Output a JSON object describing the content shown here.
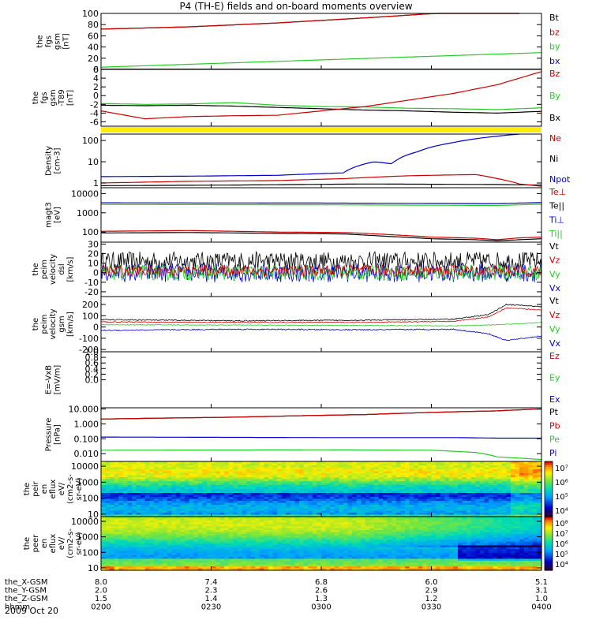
{
  "title": "P4 (TH-E) fields and on-board moments overview",
  "footer": {
    "rows": [
      {
        "label": "the_X-GSM",
        "values": [
          "8.0",
          "7.4",
          "6.8",
          "6.0",
          "5.1"
        ]
      },
      {
        "label": "the_Y-GSM",
        "values": [
          "2.0",
          "2.3",
          "2.6",
          "2.9",
          "3.1"
        ]
      },
      {
        "label": "the_Z-GSM",
        "values": [
          "1.5",
          "1.4",
          "1.3",
          "1.2",
          "1.0"
        ]
      },
      {
        "label": "hhmm",
        "values": [
          "0200",
          "0230",
          "0300",
          "0330",
          "0400"
        ]
      }
    ],
    "date": "2009 Oct 20"
  },
  "colors": {
    "black": "#000000",
    "red": "#cc0000",
    "green": "#22cc22",
    "blue": "#0000cc",
    "yellow": "#ffee00"
  },
  "chart_data": [
    {
      "type": "line",
      "ylabel": [
        "the",
        "fgs",
        "gsm",
        "[nT]"
      ],
      "ylim": [
        0,
        100
      ],
      "ticks": [
        {
          "v": 100,
          "l": "100"
        },
        {
          "v": 80,
          "l": "80"
        },
        {
          "v": 60,
          "l": "60"
        },
        {
          "v": 40,
          "l": "40"
        },
        {
          "v": 20,
          "l": "20"
        },
        {
          "v": 0,
          "l": "0"
        }
      ],
      "legend": [
        {
          "name": "Bt",
          "color": "#000000"
        },
        {
          "name": "bz",
          "color": "#cc0000"
        },
        {
          "name": "by",
          "color": "#22cc22"
        },
        {
          "name": "bx",
          "color": "#0000cc"
        }
      ],
      "series": [
        {
          "name": "bx",
          "color": "#0000cc",
          "x": [
            0,
            1
          ],
          "y": [
            0.5,
            0.5
          ]
        },
        {
          "name": "by",
          "color": "#22cc22",
          "x": [
            0,
            1
          ],
          "y": [
            4,
            30
          ]
        },
        {
          "name": "Bt",
          "color": "#000000",
          "x": [
            0,
            0.2,
            0.4,
            0.6,
            0.8,
            0.95
          ],
          "y": [
            72,
            76,
            83,
            92,
            102,
            110
          ]
        },
        {
          "name": "bz",
          "color": "#cc0000",
          "x": [
            0,
            0.2,
            0.4,
            0.6,
            0.8,
            0.95
          ],
          "y": [
            72,
            76,
            83,
            92,
            102,
            110
          ]
        }
      ]
    },
    {
      "type": "line",
      "ylabel": [
        "the",
        "fgs",
        "gsm",
        "-T89",
        "[nT]"
      ],
      "ylim": [
        -7,
        6
      ],
      "ticks": [
        {
          "v": 6,
          "l": "6"
        },
        {
          "v": 4,
          "l": "4"
        },
        {
          "v": 2,
          "l": "2"
        },
        {
          "v": 0,
          "l": "0"
        },
        {
          "v": -2,
          "l": "-2"
        },
        {
          "v": -4,
          "l": "-4"
        },
        {
          "v": -6,
          "l": "-6"
        }
      ],
      "legend": [
        {
          "name": "Bz",
          "color": "#cc0000"
        },
        {
          "name": "By",
          "color": "#22cc22"
        },
        {
          "name": "Bx",
          "color": "#000000"
        }
      ],
      "bar_color": "#ffee00",
      "series": [
        {
          "name": "By",
          "color": "#22cc22",
          "x": [
            0,
            0.1,
            0.2,
            0.3,
            0.4,
            0.5,
            0.6,
            0.7,
            0.8,
            0.9,
            1
          ],
          "y": [
            -1.8,
            -2.0,
            -1.9,
            -1.6,
            -2.2,
            -2.5,
            -2.6,
            -2.9,
            -3.0,
            -3.2,
            -2.8
          ]
        },
        {
          "name": "Bx",
          "color": "#000000",
          "x": [
            0,
            0.1,
            0.2,
            0.3,
            0.4,
            0.5,
            0.6,
            0.7,
            0.8,
            0.9,
            1
          ],
          "y": [
            -2.2,
            -2.3,
            -2.2,
            -2.4,
            -2.7,
            -3.0,
            -3.3,
            -3.5,
            -3.8,
            -4.0,
            -3.6
          ]
        },
        {
          "name": "Bz",
          "color": "#cc0000",
          "x": [
            0,
            0.1,
            0.2,
            0.3,
            0.4,
            0.5,
            0.6,
            0.7,
            0.8,
            0.9,
            1
          ],
          "y": [
            -3.5,
            -5.3,
            -4.8,
            -4.6,
            -4.5,
            -3.5,
            -2.5,
            -1.0,
            0.5,
            2.5,
            5.5
          ]
        }
      ]
    },
    {
      "type": "line",
      "ylabel": [
        "Density",
        "[cm-3]"
      ],
      "ylog": true,
      "ylim": [
        0.6,
        200
      ],
      "ticks": [
        {
          "v": 100,
          "l": "100"
        },
        {
          "v": 10,
          "l": "10"
        },
        {
          "v": 1,
          "l": "1"
        }
      ],
      "legend": [
        {
          "name": "Ne",
          "color": "#cc0000"
        },
        {
          "name": "Ni",
          "color": "#000000"
        },
        {
          "name": "Npot",
          "color": "#0000cc"
        }
      ],
      "series": [
        {
          "name": "Ni",
          "color": "#000000",
          "x": [
            0,
            0.3,
            0.6,
            0.9,
            1
          ],
          "y": [
            0.75,
            0.8,
            0.9,
            0.85,
            0.8
          ]
        },
        {
          "name": "Ne",
          "color": "#cc0000",
          "x": [
            0,
            0.2,
            0.4,
            0.55,
            0.7,
            0.8,
            0.85,
            0.9,
            0.95,
            1
          ],
          "y": [
            1,
            1.2,
            1.3,
            1.6,
            2.2,
            2.4,
            2.5,
            1.6,
            0.9,
            0.7
          ]
        },
        {
          "name": "Npot",
          "color": "#0000cc",
          "x": [
            0,
            0.2,
            0.4,
            0.55,
            0.62,
            0.66,
            0.72,
            0.8,
            0.95
          ],
          "y": [
            2,
            2.1,
            2.3,
            3,
            10,
            8,
            30,
            80,
            200
          ]
        }
      ]
    },
    {
      "type": "line",
      "ylabel": [
        "magt3",
        "[eV]"
      ],
      "ylog": true,
      "ylim": [
        30,
        20000
      ],
      "ticks": [
        {
          "v": 10000,
          "l": "10000"
        },
        {
          "v": 1000,
          "l": "1000"
        },
        {
          "v": 100,
          "l": "100"
        }
      ],
      "legend": [
        {
          "name": "Te⊥",
          "color": "#cc0000"
        },
        {
          "name": "Te||",
          "color": "#000000"
        },
        {
          "name": "Ti⊥",
          "color": "#0000cc"
        },
        {
          "name": "Ti||",
          "color": "#22cc22"
        }
      ],
      "series": [
        {
          "name": "Ti⊥",
          "color": "#0000cc",
          "x": [
            0,
            0.5,
            0.9,
            1
          ],
          "y": [
            3300,
            3200,
            3000,
            3400
          ]
        },
        {
          "name": "Ti||",
          "color": "#22cc22",
          "x": [
            0,
            0.5,
            0.9,
            1
          ],
          "y": [
            2700,
            2600,
            2400,
            2800
          ]
        },
        {
          "name": "Te||",
          "color": "#000000",
          "x": [
            0,
            0.2,
            0.4,
            0.55,
            0.65,
            0.75,
            0.85,
            0.9,
            0.95,
            1
          ],
          "y": [
            90,
            95,
            85,
            80,
            60,
            45,
            40,
            35,
            40,
            45
          ]
        },
        {
          "name": "Te⊥",
          "color": "#cc0000",
          "x": [
            0,
            0.2,
            0.4,
            0.55,
            0.65,
            0.75,
            0.85,
            0.9,
            0.95,
            1
          ],
          "y": [
            110,
            120,
            100,
            95,
            75,
            55,
            48,
            40,
            50,
            55
          ]
        }
      ]
    },
    {
      "type": "line",
      "ylabel": [
        "the",
        "peim",
        "velocity",
        "dsl",
        "[km/s]"
      ],
      "ylim": [
        -25,
        32
      ],
      "ticks": [
        {
          "v": 30,
          "l": "30"
        },
        {
          "v": 20,
          "l": "20"
        },
        {
          "v": 10,
          "l": "10"
        },
        {
          "v": 0,
          "l": "0"
        },
        {
          "v": -10,
          "l": "-10"
        },
        {
          "v": -20,
          "l": "-20"
        }
      ],
      "legend": [
        {
          "name": "Vt",
          "color": "#000000"
        },
        {
          "name": "Vz",
          "color": "#cc0000"
        },
        {
          "name": "Vy",
          "color": "#22cc22"
        },
        {
          "name": "Vx",
          "color": "#0000cc"
        }
      ],
      "series": [
        {
          "name": "Vt",
          "color": "#000000",
          "x": [
            0,
            1
          ],
          "y": [
            12,
            12
          ],
          "noise": 10
        },
        {
          "name": "Vx",
          "color": "#0000cc",
          "x": [
            0,
            1
          ],
          "y": [
            0,
            0
          ],
          "noise": 10
        },
        {
          "name": "Vy",
          "color": "#22cc22",
          "x": [
            0,
            1
          ],
          "y": [
            0,
            0
          ],
          "noise": 8
        },
        {
          "name": "Vz",
          "color": "#cc0000",
          "x": [
            0,
            1
          ],
          "y": [
            2,
            2
          ],
          "noise": 6
        }
      ]
    },
    {
      "type": "line",
      "ylabel": [
        "the",
        "peim",
        "velocity",
        "gsm",
        "[km/s]"
      ],
      "ylim": [
        -220,
        270
      ],
      "ticks": [
        {
          "v": 200,
          "l": "200"
        },
        {
          "v": 100,
          "l": "100"
        },
        {
          "v": 0,
          "l": "0"
        },
        {
          "v": -100,
          "l": "-100"
        },
        {
          "v": -200,
          "l": "-200"
        }
      ],
      "legend": [
        {
          "name": "Vt",
          "color": "#000000"
        },
        {
          "name": "Vz",
          "color": "#cc0000"
        },
        {
          "name": "Vy",
          "color": "#22cc22"
        },
        {
          "name": "Vx",
          "color": "#0000cc"
        }
      ],
      "series": [
        {
          "name": "Vy",
          "color": "#22cc22",
          "x": [
            0,
            0.5,
            0.8,
            0.9,
            1
          ],
          "y": [
            20,
            15,
            10,
            20,
            40
          ],
          "noise": 3
        },
        {
          "name": "Vx",
          "color": "#0000cc",
          "x": [
            0,
            0.3,
            0.6,
            0.8,
            0.88,
            0.92,
            1
          ],
          "y": [
            -30,
            -20,
            -25,
            -20,
            -60,
            -120,
            -80
          ],
          "noise": 5
        },
        {
          "name": "Vt",
          "color": "#000000",
          "x": [
            0,
            0.3,
            0.6,
            0.8,
            0.88,
            0.92,
            1
          ],
          "y": [
            65,
            55,
            60,
            70,
            110,
            200,
            180
          ],
          "noise": 5
        },
        {
          "name": "Vz",
          "color": "#cc0000",
          "x": [
            0,
            0.3,
            0.6,
            0.8,
            0.88,
            0.92,
            1
          ],
          "y": [
            45,
            40,
            42,
            50,
            90,
            170,
            150
          ],
          "noise": 4
        }
      ]
    },
    {
      "type": "line",
      "ylabel": [
        "E=-VxB",
        "[mV/m]"
      ],
      "ylim": [
        -1,
        1
      ],
      "ticks": [
        {
          "v": 1,
          "l": "1.0"
        },
        {
          "v": 0.8,
          "l": "0.8"
        },
        {
          "v": 0.6,
          "l": "0.6"
        },
        {
          "v": 0.4,
          "l": "0.4"
        },
        {
          "v": 0.2,
          "l": "0.2"
        },
        {
          "v": 0,
          "l": "0.0"
        }
      ],
      "legend": [
        {
          "name": "Ez",
          "color": "#cc0000"
        },
        {
          "name": "Ey",
          "color": "#22cc22"
        },
        {
          "name": "Ex",
          "color": "#0000cc"
        }
      ],
      "series": []
    },
    {
      "type": "line",
      "ylabel": [
        "Pressure",
        "[nPa]"
      ],
      "ylog": true,
      "ylim": [
        0.003,
        12
      ],
      "ticks": [
        {
          "v": 10,
          "l": "10.000"
        },
        {
          "v": 1,
          "l": "1.000"
        },
        {
          "v": 0.1,
          "l": "0.100"
        },
        {
          "v": 0.01,
          "l": "0.010"
        },
        {
          "v": 0.001,
          "l": "0.001"
        }
      ],
      "legend": [
        {
          "name": "Pt",
          "color": "#000000"
        },
        {
          "name": "Pb",
          "color": "#cc0000"
        },
        {
          "name": "Pe",
          "color": "#22cc22"
        },
        {
          "name": "Pi",
          "color": "#0000cc"
        }
      ],
      "series": [
        {
          "name": "Pi",
          "color": "#0000cc",
          "x": [
            0,
            0.5,
            0.8,
            0.9,
            1
          ],
          "y": [
            0.13,
            0.12,
            0.12,
            0.11,
            0.11
          ]
        },
        {
          "name": "Pe",
          "color": "#22cc22",
          "x": [
            0,
            0.5,
            0.75,
            0.85,
            0.9,
            1
          ],
          "y": [
            0.017,
            0.018,
            0.017,
            0.012,
            0.006,
            0.004
          ]
        },
        {
          "name": "Pt",
          "color": "#000000",
          "x": [
            0,
            0.3,
            0.6,
            0.9,
            1
          ],
          "y": [
            2.1,
            2.8,
            4.2,
            7.5,
            10
          ]
        },
        {
          "name": "Pb",
          "color": "#cc0000",
          "x": [
            0,
            0.3,
            0.6,
            0.9,
            1
          ],
          "y": [
            2.1,
            2.8,
            4.2,
            7.5,
            10
          ]
        }
      ]
    },
    {
      "type": "heatmap",
      "ylabel": [
        "the",
        "peir",
        "en",
        "eflux",
        "eV/",
        "(cm2-s-",
        "sr-eV)"
      ],
      "ylog": true,
      "ylim": [
        7,
        20000
      ],
      "ticks": [
        {
          "v": 10000,
          "l": "10000"
        },
        {
          "v": 1000,
          "l": "1000"
        },
        {
          "v": 100,
          "l": "100"
        },
        {
          "v": 10,
          "l": "10"
        }
      ],
      "colorbar": {
        "ticks": [
          "10⁷",
          "10⁶",
          "10⁵",
          "10⁴"
        ]
      }
    },
    {
      "type": "heatmap",
      "ylabel": [
        "the",
        "peer",
        "en",
        "eflux",
        "eV/",
        "(cm2-s-",
        "sr-eV)"
      ],
      "ylog": true,
      "ylim": [
        7,
        20000
      ],
      "ticks": [
        {
          "v": 10000,
          "l": "10000"
        },
        {
          "v": 1000,
          "l": "1000"
        },
        {
          "v": 100,
          "l": "100"
        },
        {
          "v": 10,
          "l": "10"
        }
      ],
      "colorbar": {
        "ticks": [
          "10⁸",
          "10⁷",
          "10⁶",
          "10⁵",
          "10⁴"
        ]
      }
    }
  ]
}
